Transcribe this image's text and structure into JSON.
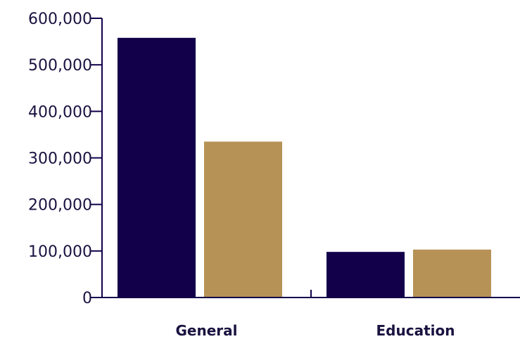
{
  "chart_data": {
    "type": "bar",
    "categories": [
      "General",
      "Education"
    ],
    "series": [
      {
        "values": [
          558000,
          98000
        ],
        "color": "#12004a"
      },
      {
        "values": [
          335000,
          103000
        ],
        "color": "#b69257"
      }
    ],
    "ylim": [
      0,
      600000
    ],
    "yticks": [
      "0",
      "100,000",
      "200,000",
      "300,000",
      "400,000",
      "500,000",
      "600,000"
    ],
    "grid": false,
    "legend": "none",
    "axis_color": "#12004a"
  }
}
